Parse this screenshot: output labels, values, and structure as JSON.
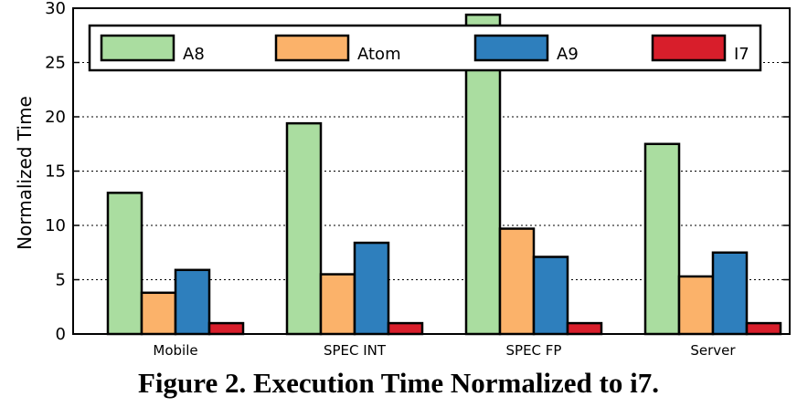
{
  "caption": "Figure 2. Execution Time Normalized to i7.",
  "chart_data": {
    "type": "bar",
    "categories": [
      "Mobile",
      "SPEC INT",
      "SPEC FP",
      "Server"
    ],
    "series": [
      {
        "name": "A8",
        "color": "#aadda0",
        "values": [
          13.0,
          19.4,
          29.4,
          17.5
        ]
      },
      {
        "name": "Atom",
        "color": "#fbb26a",
        "values": [
          3.8,
          5.5,
          9.7,
          5.3
        ]
      },
      {
        "name": "A9",
        "color": "#2e7fbd",
        "values": [
          5.9,
          8.4,
          7.1,
          7.5
        ]
      },
      {
        "name": "I7",
        "color": "#d81e2b",
        "values": [
          1.0,
          1.0,
          1.0,
          1.0
        ]
      }
    ],
    "ylabel": "Normalized Time",
    "xlabel": "",
    "ylim": [
      0,
      30
    ],
    "yticks": [
      0,
      5,
      10,
      15,
      20,
      25,
      30
    ],
    "grid": "horizontal-dotted",
    "legend": "top"
  }
}
